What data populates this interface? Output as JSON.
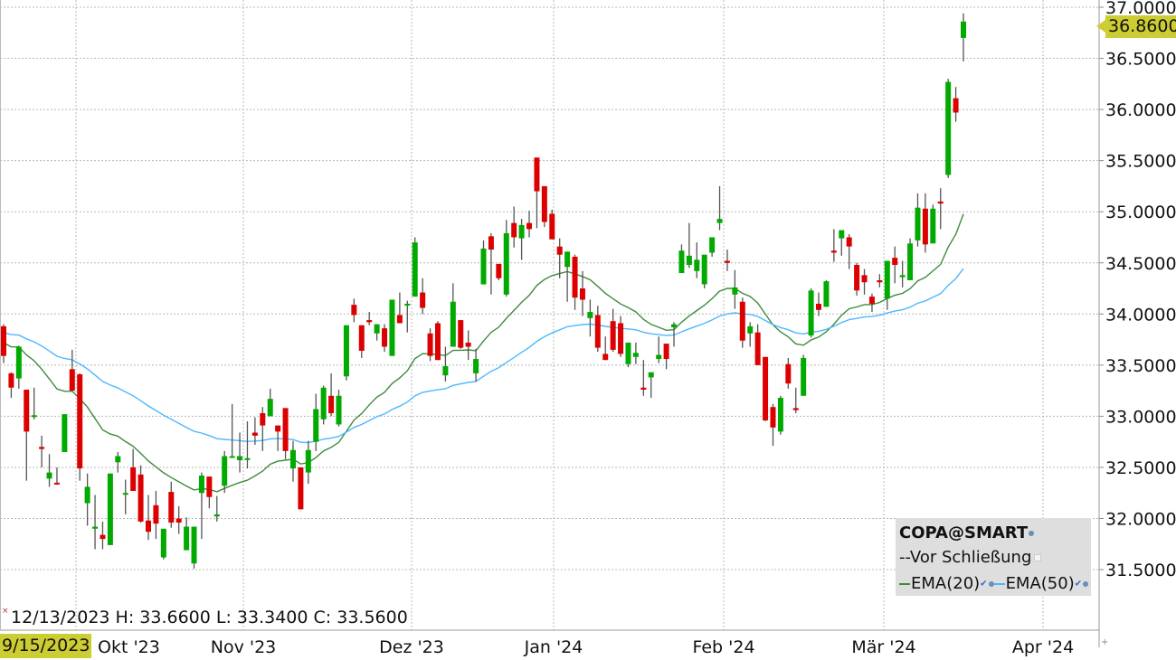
{
  "chart_data": {
    "type": "candlestick",
    "symbol": "COPA@SMART",
    "ylim": [
      31.15,
      37.0
    ],
    "y_ticks": [
      "37.0000",
      "36.5000",
      "36.0000",
      "35.5000",
      "35.0000",
      "34.5000",
      "34.0000",
      "33.5000",
      "33.0000",
      "32.5000",
      "32.0000",
      "31.5000"
    ],
    "x_ticks": [
      "Okt '23",
      "Nov '23",
      "Dez '23",
      "Jan '24",
      "Feb '24",
      "Mär '24",
      "Apr '24"
    ],
    "grid": true,
    "colors": {
      "up": "#00aa00",
      "down": "#dd0000",
      "wick": "#555555",
      "ema20": "#3c8c3c",
      "ema50": "#4db8ff",
      "highlight": "#cccc33"
    },
    "candles_ohlc": [
      [
        33.88,
        33.9,
        33.52,
        33.59
      ],
      [
        33.42,
        33.43,
        33.18,
        33.28
      ],
      [
        33.37,
        33.69,
        33.27,
        33.68
      ],
      [
        33.26,
        33.26,
        32.37,
        32.85
      ],
      [
        33.0,
        33.28,
        32.97,
        33.01
      ],
      [
        32.7,
        32.81,
        32.5,
        32.68
      ],
      [
        32.39,
        32.63,
        32.31,
        32.45
      ],
      [
        32.35,
        32.5,
        32.33,
        32.34
      ],
      [
        32.65,
        33.02,
        32.65,
        33.02
      ],
      [
        33.46,
        33.65,
        33.24,
        33.25
      ],
      [
        33.41,
        33.42,
        32.37,
        32.49
      ],
      [
        32.15,
        32.44,
        31.93,
        32.31
      ],
      [
        31.9,
        32.23,
        31.7,
        31.92
      ],
      [
        31.84,
        31.97,
        31.7,
        31.8
      ],
      [
        31.74,
        32.44,
        31.74,
        32.44
      ],
      [
        32.55,
        32.65,
        32.45,
        32.61
      ],
      [
        32.24,
        32.38,
        32.04,
        32.25
      ],
      [
        32.5,
        32.68,
        32.27,
        32.27
      ],
      [
        32.43,
        32.52,
        31.96,
        31.97
      ],
      [
        31.98,
        32.23,
        31.79,
        31.87
      ],
      [
        32.13,
        32.27,
        31.8,
        31.95
      ],
      [
        31.62,
        31.9,
        31.6,
        31.9
      ],
      [
        32.26,
        32.36,
        31.91,
        31.96
      ],
      [
        32.0,
        32.12,
        31.85,
        31.96
      ],
      [
        31.69,
        32.01,
        31.69,
        31.92
      ],
      [
        31.56,
        31.92,
        31.51,
        31.92
      ],
      [
        32.25,
        32.45,
        31.8,
        32.42
      ],
      [
        32.41,
        32.41,
        32.1,
        32.21
      ],
      [
        32.02,
        32.22,
        31.97,
        32.04
      ],
      [
        32.32,
        32.66,
        32.25,
        32.61
      ],
      [
        32.61,
        33.12,
        32.6,
        32.61
      ],
      [
        32.57,
        32.84,
        32.45,
        32.61
      ],
      [
        32.59,
        32.95,
        32.49,
        32.59
      ],
      [
        32.84,
        32.99,
        32.72,
        32.81
      ],
      [
        33.03,
        33.09,
        32.66,
        32.91
      ],
      [
        33.0,
        33.27,
        33.0,
        33.17
      ],
      [
        32.91,
        32.91,
        32.66,
        32.85
      ],
      [
        33.08,
        33.08,
        32.58,
        32.66
      ],
      [
        32.49,
        32.76,
        32.36,
        32.67
      ],
      [
        32.5,
        32.5,
        32.09,
        32.09
      ],
      [
        32.45,
        32.76,
        32.34,
        32.67
      ],
      [
        32.75,
        33.22,
        32.66,
        33.07
      ],
      [
        32.97,
        33.3,
        32.92,
        33.28
      ],
      [
        33.2,
        33.42,
        33.0,
        33.03
      ],
      [
        32.92,
        33.26,
        32.9,
        33.2
      ],
      [
        33.39,
        33.89,
        33.35,
        33.89
      ],
      [
        34.09,
        34.15,
        33.92,
        33.99
      ],
      [
        33.89,
        33.89,
        33.57,
        33.64
      ],
      [
        33.94,
        34.02,
        33.89,
        33.92
      ],
      [
        33.81,
        33.9,
        33.74,
        33.9
      ],
      [
        33.86,
        33.9,
        33.63,
        33.68
      ],
      [
        33.59,
        34.14,
        33.59,
        34.14
      ],
      [
        33.99,
        34.21,
        33.91,
        33.91
      ],
      [
        34.09,
        34.13,
        33.82,
        34.1
      ],
      [
        34.17,
        34.75,
        34.17,
        34.7
      ],
      [
        34.21,
        34.35,
        34.0,
        34.06
      ],
      [
        33.81,
        33.86,
        33.54,
        33.59
      ],
      [
        33.91,
        33.93,
        33.55,
        33.55
      ],
      [
        33.4,
        33.68,
        33.34,
        33.49
      ],
      [
        33.68,
        34.3,
        33.68,
        34.12
      ],
      [
        33.94,
        33.94,
        33.66,
        33.67
      ],
      [
        33.72,
        33.84,
        33.55,
        33.68
      ],
      [
        33.42,
        33.66,
        33.34,
        33.56
      ],
      [
        34.29,
        34.72,
        34.29,
        34.64
      ],
      [
        34.76,
        34.79,
        34.19,
        34.63
      ],
      [
        34.49,
        34.49,
        34.33,
        34.35
      ],
      [
        34.19,
        34.92,
        34.17,
        34.79
      ],
      [
        34.89,
        35.05,
        34.65,
        34.75
      ],
      [
        34.74,
        34.93,
        34.53,
        34.87
      ],
      [
        34.89,
        35.01,
        34.75,
        34.83
      ],
      [
        35.53,
        35.53,
        34.84,
        35.2
      ],
      [
        35.25,
        35.25,
        34.85,
        34.9
      ],
      [
        34.98,
        35.02,
        34.73,
        34.73
      ],
      [
        34.66,
        34.74,
        34.35,
        34.58
      ],
      [
        34.46,
        34.61,
        34.12,
        34.61
      ],
      [
        34.56,
        34.58,
        34.04,
        34.16
      ],
      [
        34.25,
        34.42,
        33.98,
        34.14
      ],
      [
        33.96,
        34.14,
        33.78,
        34.02
      ],
      [
        33.99,
        34.08,
        33.63,
        33.67
      ],
      [
        33.61,
        33.78,
        33.55,
        33.55
      ],
      [
        33.93,
        34.05,
        33.63,
        33.65
      ],
      [
        33.91,
        33.98,
        33.58,
        33.61
      ],
      [
        33.51,
        33.72,
        33.48,
        33.72
      ],
      [
        33.58,
        33.72,
        33.51,
        33.62
      ],
      [
        33.28,
        33.55,
        33.2,
        33.26
      ],
      [
        33.38,
        33.43,
        33.18,
        33.43
      ],
      [
        33.56,
        33.78,
        33.52,
        33.6
      ],
      [
        33.71,
        33.71,
        33.46,
        33.56
      ],
      [
        33.87,
        33.92,
        33.68,
        33.9
      ],
      [
        34.4,
        34.68,
        34.4,
        34.62
      ],
      [
        34.48,
        34.89,
        34.45,
        34.57
      ],
      [
        34.42,
        34.7,
        34.35,
        34.53
      ],
      [
        34.29,
        34.58,
        34.25,
        34.58
      ],
      [
        34.6,
        34.75,
        34.56,
        34.75
      ],
      [
        34.89,
        35.25,
        34.82,
        34.93
      ],
      [
        34.52,
        34.63,
        34.42,
        34.5
      ],
      [
        34.19,
        34.43,
        34.05,
        34.26
      ],
      [
        34.12,
        34.16,
        33.67,
        33.74
      ],
      [
        33.81,
        33.92,
        33.68,
        33.88
      ],
      [
        33.82,
        33.9,
        33.5,
        33.5
      ],
      [
        33.58,
        33.58,
        32.95,
        32.96
      ],
      [
        33.09,
        33.12,
        32.71,
        32.89
      ],
      [
        32.85,
        33.2,
        32.82,
        33.18
      ],
      [
        33.51,
        33.57,
        33.27,
        33.32
      ],
      [
        33.08,
        33.28,
        33.03,
        33.06
      ],
      [
        33.2,
        33.6,
        33.2,
        33.57
      ],
      [
        33.79,
        34.25,
        33.77,
        34.23
      ],
      [
        34.1,
        34.21,
        33.98,
        34.04
      ],
      [
        34.07,
        34.33,
        34.07,
        34.32
      ],
      [
        34.62,
        34.83,
        34.51,
        34.6
      ],
      [
        34.74,
        34.82,
        34.57,
        34.82
      ],
      [
        34.75,
        34.78,
        34.44,
        34.66
      ],
      [
        34.48,
        34.5,
        34.18,
        34.23
      ],
      [
        34.38,
        34.44,
        34.19,
        34.31
      ],
      [
        34.17,
        34.2,
        34.02,
        34.1
      ],
      [
        34.33,
        34.39,
        34.26,
        34.31
      ],
      [
        34.15,
        34.52,
        34.04,
        34.52
      ],
      [
        34.55,
        34.66,
        34.3,
        34.48
      ],
      [
        34.36,
        34.52,
        34.26,
        34.38
      ],
      [
        34.33,
        34.74,
        34.33,
        34.69
      ],
      [
        34.72,
        35.18,
        34.66,
        35.04
      ],
      [
        35.03,
        35.18,
        34.6,
        34.68
      ],
      [
        34.69,
        35.07,
        34.69,
        35.03
      ],
      [
        35.1,
        35.23,
        34.83,
        35.08
      ],
      [
        35.36,
        36.3,
        35.33,
        36.27
      ],
      [
        36.11,
        36.22,
        35.88,
        35.97
      ],
      [
        36.7,
        36.94,
        36.47,
        36.86
      ]
    ],
    "series": [
      {
        "name": "EMA(20)",
        "period": 20,
        "start_value": 33.72
      },
      {
        "name": "EMA(50)",
        "period": 50,
        "start_value": 33.82
      }
    ],
    "last_price": "36.8600"
  },
  "legend": {
    "title": "COPA@SMART",
    "line2": "--Vor Schließung",
    "ema20": "EMA(20)",
    "ema50": "EMA(50)"
  },
  "readout": "12/13/2023 H: 33.6600 L: 33.3400 C: 33.5600",
  "crosshair_date": "9/15/2023"
}
